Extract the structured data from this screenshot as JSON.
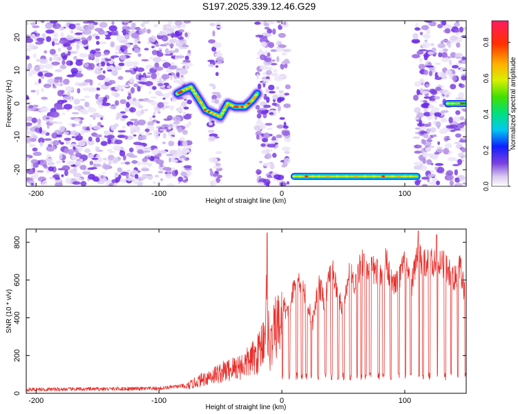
{
  "title": "S197.2025.339.12.46.G29",
  "chart_data": [
    {
      "type": "heatmap",
      "xlabel": "Height of straight line (km)",
      "ylabel": "Frequency (Hz)",
      "xlim": [
        -208,
        150
      ],
      "ylim": [
        -25,
        25
      ],
      "x_ticks": [
        "-200",
        "-100",
        "0",
        "100"
      ],
      "x_tick_values": [
        -200,
        -100,
        0,
        100
      ],
      "y_ticks": [
        "20",
        "10",
        "0",
        "-10",
        "-20"
      ],
      "y_tick_values": [
        20,
        10,
        0,
        -10,
        -20
      ],
      "noise_regions": [
        [
          -208,
          -75
        ],
        [
          -58,
          -50
        ],
        [
          -20,
          5
        ],
        [
          108,
          150
        ]
      ],
      "signal_tracks": [
        {
          "points": [
            [
              -85,
              3
            ],
            [
              -80,
              4
            ],
            [
              -74,
              5
            ],
            [
              -67,
              1
            ],
            [
              -62,
              -2
            ],
            [
              -56,
              -3
            ],
            [
              -50,
              -4
            ],
            [
              -44,
              0
            ],
            [
              -38,
              -1
            ],
            [
              -30,
              -1
            ],
            [
              -24,
              1
            ],
            [
              -20,
              3
            ]
          ]
        },
        {
          "points": [
            [
              10,
              -22
            ],
            [
              30,
              -22
            ],
            [
              60,
              -22
            ],
            [
              90,
              -22
            ],
            [
              110,
              -22
            ]
          ]
        },
        {
          "points": [
            [
              135,
              0
            ],
            [
              150,
              0
            ]
          ]
        }
      ],
      "colorbar": {
        "label": "Normalized spectral amplitude",
        "ticks": [
          "0.0",
          "0.2",
          "0.4",
          "0.6",
          "0.8"
        ],
        "tick_values": [
          0.0,
          0.2,
          0.4,
          0.6,
          0.8
        ],
        "range": [
          0,
          0.92
        ]
      }
    },
    {
      "type": "line",
      "xlabel": "Height of straight line (km)",
      "ylabel": "SNR (10 * v/v)",
      "xlim": [
        -208,
        150
      ],
      "ylim": [
        0,
        870
      ],
      "x_ticks": [
        "-200",
        "-100",
        "0",
        "100"
      ],
      "x_tick_values": [
        -200,
        -100,
        0,
        100
      ],
      "y_ticks": [
        "0",
        "200",
        "400",
        "600",
        "800"
      ],
      "y_tick_values": [
        0,
        200,
        400,
        600,
        800
      ],
      "color": "#e8302c",
      "envelope": {
        "x": [
          -208,
          -100,
          -80,
          -70,
          -60,
          -50,
          -40,
          -30,
          -20,
          -15,
          -12,
          -10,
          -5,
          0,
          5,
          10,
          15,
          20,
          25,
          30,
          35,
          40,
          45,
          50,
          55,
          60,
          65,
          70,
          75,
          80,
          85,
          90,
          95,
          100,
          105,
          110,
          115,
          120,
          125,
          130,
          135,
          140,
          145,
          150
        ],
        "y": [
          20,
          25,
          40,
          80,
          120,
          150,
          180,
          210,
          280,
          400,
          650,
          300,
          480,
          520,
          450,
          600,
          650,
          540,
          400,
          620,
          520,
          740,
          580,
          450,
          700,
          620,
          760,
          720,
          700,
          690,
          760,
          610,
          650,
          740,
          600,
          800,
          720,
          780,
          740,
          760,
          700,
          640,
          720,
          520
        ]
      },
      "peaks": [
        [
          -12,
          850
        ],
        [
          111,
          860
        ],
        [
          126,
          840
        ]
      ],
      "baseline_after_zero": 90
    }
  ]
}
